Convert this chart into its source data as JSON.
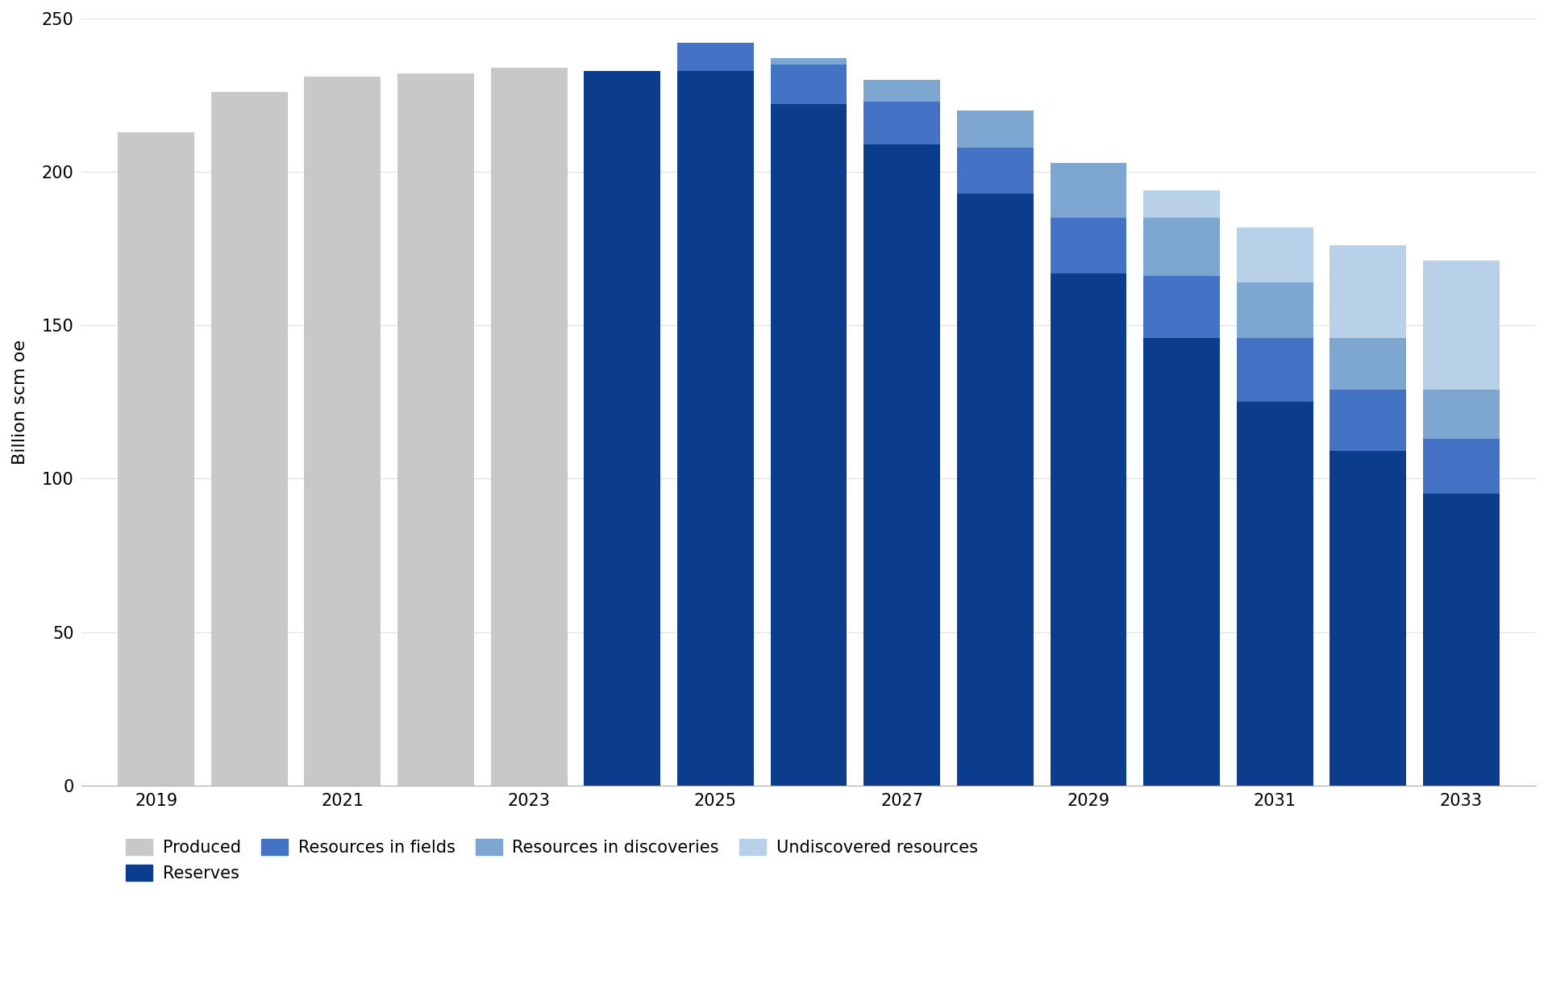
{
  "years": [
    2019,
    2020,
    2021,
    2022,
    2023,
    2024,
    2025,
    2026,
    2027,
    2028,
    2029,
    2030,
    2031,
    2032,
    2033
  ],
  "produced": [
    213,
    226,
    231,
    232,
    234,
    0,
    0,
    0,
    0,
    0,
    0,
    0,
    0,
    0,
    0
  ],
  "reserves": [
    0,
    0,
    0,
    0,
    0,
    233,
    233,
    222,
    209,
    193,
    167,
    146,
    125,
    109,
    95
  ],
  "resources_in_fields": [
    0,
    0,
    0,
    0,
    0,
    0,
    9,
    13,
    14,
    15,
    18,
    20,
    21,
    20,
    18
  ],
  "resources_in_disc": [
    0,
    0,
    0,
    0,
    0,
    0,
    0,
    2,
    7,
    12,
    18,
    19,
    18,
    17,
    16
  ],
  "undiscovered": [
    0,
    0,
    0,
    0,
    0,
    0,
    0,
    0,
    0,
    0,
    0,
    9,
    18,
    30,
    42
  ],
  "color_produced": "#c8c8c8",
  "color_reserves": "#0b3d8c",
  "color_resources_fields": "#4472c4",
  "color_resources_disc": "#7da7d0",
  "color_undiscovered": "#b8d0e8",
  "ylabel": "Billion scm oe",
  "ylim": [
    0,
    250
  ],
  "yticks": [
    0,
    50,
    100,
    150,
    200,
    250
  ],
  "background_color": "#ffffff",
  "legend_labels": [
    "Produced",
    "Reserves",
    "Resources in fields",
    "Resources in discoveries",
    "Undiscovered resources"
  ]
}
